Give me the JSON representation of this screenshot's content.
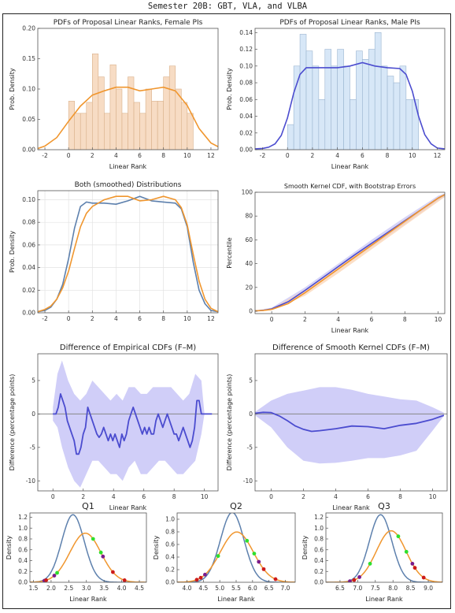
{
  "super_title": "Semester 20B: GBT, VLA, and VLBA",
  "colors": {
    "female": "#f0962e",
    "male": "#4b4ccf",
    "female_bar": "#f7dcc4",
    "male_bar": "#d7e7f7",
    "blue2": "#5d80ad",
    "band": "#b7b4f0",
    "zero": "#888888"
  },
  "chart_data": [
    {
      "id": "female_hist",
      "type": "bar",
      "title": "PDFs of Proposal Linear Ranks, Female PIs",
      "xlabel": "Linear Rank",
      "ylabel": "Prob. Density",
      "xlim": [
        -2.6,
        12.6
      ],
      "ylim": [
        0,
        0.2
      ],
      "xticks": [
        -2,
        0,
        2,
        4,
        6,
        8,
        10,
        12
      ],
      "yticks": [
        0,
        0.05,
        0.1,
        0.15,
        0.2
      ],
      "tick_decimals": 2,
      "bin_width": 0.5,
      "bin_start": 0,
      "values": [
        0.08,
        0.06,
        0.06,
        0.078,
        0.158,
        0.12,
        0.06,
        0.14,
        0.1,
        0.06,
        0.12,
        0.078,
        0.06,
        0.1,
        0.08,
        0.08,
        0.12,
        0.138,
        0.1,
        0.078,
        0.06
      ],
      "curve": {
        "x": [
          -2.6,
          -2,
          -1,
          0,
          1,
          2,
          3,
          4,
          5,
          6,
          7,
          8,
          9,
          10,
          11,
          12,
          12.6
        ],
        "y": [
          0.002,
          0.006,
          0.02,
          0.047,
          0.072,
          0.09,
          0.097,
          0.103,
          0.103,
          0.097,
          0.1,
          0.103,
          0.097,
          0.073,
          0.035,
          0.011,
          0.005
        ]
      }
    },
    {
      "id": "male_hist",
      "type": "bar",
      "title": "PDFs of Proposal Linear Ranks, Male PIs",
      "xlabel": "Linear Rank",
      "ylabel": "Prob. Density",
      "xlim": [
        -2.6,
        12.6
      ],
      "ylim": [
        0,
        0.145
      ],
      "xticks": [
        -2,
        0,
        2,
        4,
        6,
        8,
        10,
        12
      ],
      "yticks": [
        0,
        0.02,
        0.04,
        0.06,
        0.08,
        0.1,
        0.12,
        0.14
      ],
      "tick_decimals": 2,
      "bin_width": 0.5,
      "bin_start": 0,
      "values": [
        0.03,
        0.1,
        0.138,
        0.118,
        0.1,
        0.06,
        0.12,
        0.1,
        0.12,
        0.1,
        0.06,
        0.118,
        0.108,
        0.12,
        0.14,
        0.1,
        0.088,
        0.08,
        0.1,
        0.06,
        0.06
      ],
      "curve": {
        "x": [
          -2.6,
          -2,
          -1.5,
          -1,
          -0.5,
          0,
          0.5,
          1,
          1.5,
          2,
          3,
          4,
          5,
          6,
          7,
          8,
          9,
          9.5,
          10,
          10.5,
          11,
          11.5,
          12,
          12.6
        ],
        "y": [
          0.001,
          0.0015,
          0.003,
          0.007,
          0.017,
          0.038,
          0.068,
          0.09,
          0.098,
          0.098,
          0.098,
          0.098,
          0.1,
          0.104,
          0.1,
          0.098,
          0.097,
          0.09,
          0.07,
          0.04,
          0.018,
          0.007,
          0.002,
          0.001
        ]
      }
    },
    {
      "id": "both",
      "type": "line",
      "title": "Both (smoothed) Distributions",
      "xlabel": "",
      "ylabel": "Prob. Density",
      "xlim": [
        -2.6,
        12.6
      ],
      "ylim": [
        0,
        0.108
      ],
      "xticks": [
        -2,
        0,
        2,
        4,
        6,
        8,
        10,
        12
      ],
      "yticks": [
        0,
        0.02,
        0.04,
        0.06,
        0.08,
        0.1
      ],
      "tick_decimals": 2,
      "grid": true,
      "series": [
        {
          "x": [
            -2.6,
            -2,
            -1.5,
            -1,
            -0.5,
            0,
            0.5,
            1,
            1.5,
            2,
            3,
            4,
            5,
            6,
            7,
            8,
            9,
            9.5,
            10,
            10.5,
            11,
            11.5,
            12,
            12.6
          ],
          "y": [
            0.001,
            0.002,
            0.005,
            0.012,
            0.025,
            0.048,
            0.075,
            0.094,
            0.098,
            0.097,
            0.097,
            0.096,
            0.099,
            0.103,
            0.099,
            0.098,
            0.097,
            0.092,
            0.076,
            0.045,
            0.02,
            0.008,
            0.002,
            0.001
          ],
          "color": "blue2"
        },
        {
          "x": [
            -2.6,
            -2,
            -1.5,
            -1,
            -0.5,
            0,
            0.5,
            1,
            1.5,
            2,
            3,
            4,
            5,
            6,
            7,
            8,
            9,
            9.5,
            10,
            10.5,
            11,
            11.5,
            12,
            12.6
          ],
          "y": [
            0.001,
            0.003,
            0.006,
            0.012,
            0.022,
            0.037,
            0.057,
            0.076,
            0.088,
            0.094,
            0.1,
            0.103,
            0.103,
            0.099,
            0.1,
            0.103,
            0.1,
            0.093,
            0.078,
            0.052,
            0.028,
            0.012,
            0.004,
            0.001
          ],
          "color": "female"
        }
      ]
    },
    {
      "id": "cdf",
      "type": "line",
      "title": "Smooth Kernel CDF, with Bootstrap Errors",
      "xlabel": "Linear Rank",
      "ylabel": "Percentile",
      "xlim": [
        -1,
        10.4
      ],
      "ylim": [
        -2,
        100
      ],
      "xticks": [
        0,
        2,
        4,
        6,
        8,
        10
      ],
      "yticks": [
        0,
        20,
        40,
        60,
        80,
        100
      ],
      "tick_decimals": 0,
      "bands": [
        {
          "x": [
            -1,
            0,
            2,
            4,
            6,
            8,
            10,
            10.4
          ],
          "lo": [
            -0.5,
            1,
            16,
            35,
            54,
            73,
            93,
            96
          ],
          "hi": [
            0.5,
            3,
            20,
            40,
            60,
            79,
            97,
            99
          ],
          "color": "#c8c6f4"
        },
        {
          "x": [
            -1,
            0,
            2,
            4,
            6,
            8,
            10,
            10.4
          ],
          "lo": [
            -0.5,
            1,
            13,
            32,
            52,
            72,
            92,
            96
          ],
          "hi": [
            0.5,
            2,
            18,
            37,
            57,
            77,
            96,
            98.5
          ],
          "color": "#fbd4b4"
        }
      ],
      "series": [
        {
          "x": [
            -1,
            -0.5,
            0,
            1,
            2,
            3,
            4,
            5,
            6,
            7,
            8,
            9,
            10,
            10.4
          ],
          "y": [
            0.3,
            0.8,
            2,
            8,
            17.5,
            27.5,
            37.5,
            47.5,
            57,
            66.5,
            76,
            85.5,
            95,
            98
          ],
          "color": "male"
        },
        {
          "x": [
            -1,
            -0.5,
            0,
            1,
            2,
            3,
            4,
            5,
            6,
            7,
            8,
            9,
            10,
            10.4
          ],
          "y": [
            0.3,
            0.7,
            1.5,
            6.5,
            15.5,
            25.5,
            35.5,
            45.5,
            55.5,
            65.5,
            75.5,
            85.5,
            95,
            98
          ],
          "color": "female"
        }
      ]
    },
    {
      "id": "ediff",
      "type": "line",
      "title": "Difference of Empirical CDFs (F–M)",
      "xlabel": "Linear Rank",
      "ylabel": "Difference (percentage points)",
      "xlim": [
        -1,
        10.9
      ],
      "ylim": [
        -11.5,
        9
      ],
      "xticks": [
        0,
        2,
        4,
        6,
        8,
        10
      ],
      "yticks": [
        -10,
        -5,
        0,
        5
      ],
      "tick_decimals": 0,
      "zero_line": true,
      "bands": [
        {
          "x": [
            0,
            0.3,
            0.6,
            1,
            1.4,
            1.8,
            2.2,
            2.6,
            3,
            3.4,
            3.8,
            4.2,
            4.6,
            5,
            5.4,
            5.8,
            6.2,
            6.6,
            7,
            7.4,
            7.8,
            8.2,
            8.6,
            9,
            9.4,
            9.8,
            10
          ],
          "lo": [
            -1,
            -2,
            -5,
            -8,
            -10,
            -11,
            -9,
            -7,
            -7,
            -8,
            -9,
            -9,
            -10,
            -8,
            -7,
            -9,
            -9,
            -8,
            -7,
            -7,
            -8,
            -9,
            -9,
            -8,
            -7,
            -3,
            0
          ],
          "hi": [
            1,
            6,
            8,
            5,
            3,
            2,
            3,
            5,
            4,
            3,
            2,
            3,
            2,
            4,
            4,
            3,
            3,
            4,
            4,
            4,
            4,
            3,
            2,
            3,
            6,
            5,
            0
          ],
          "color": "#c0bef5"
        }
      ],
      "series": [
        {
          "x": [
            0,
            0.2,
            0.35,
            0.5,
            0.65,
            0.8,
            0.95,
            1.1,
            1.25,
            1.4,
            1.55,
            1.7,
            1.85,
            2.0,
            2.15,
            2.3,
            2.45,
            2.6,
            2.75,
            2.9,
            3.05,
            3.2,
            3.35,
            3.5,
            3.65,
            3.8,
            3.95,
            4.1,
            4.25,
            4.4,
            4.55,
            4.7,
            4.85,
            5.0,
            5.15,
            5.3,
            5.45,
            5.6,
            5.75,
            5.9,
            6.05,
            6.2,
            6.35,
            6.5,
            6.65,
            6.8,
            6.95,
            7.1,
            7.25,
            7.4,
            7.55,
            7.7,
            7.85,
            8.0,
            8.15,
            8.3,
            8.45,
            8.6,
            8.75,
            8.9,
            9.05,
            9.2,
            9.35,
            9.5,
            9.65,
            9.8,
            10,
            10.5
          ],
          "y": [
            0,
            0,
            1,
            3,
            2,
            1,
            -1,
            -2,
            -3,
            -4,
            -6,
            -6,
            -5,
            -3,
            -2,
            1,
            0,
            -1,
            -2,
            -3,
            -3.5,
            -3,
            -2,
            -3,
            -4,
            -3,
            -4,
            -3,
            -4,
            -5,
            -3,
            -4,
            -3,
            -1,
            0,
            1,
            0,
            -1,
            -2,
            -3,
            -2,
            -3,
            -2,
            -3,
            -3,
            -1,
            0,
            -1,
            -2,
            -1,
            0,
            -1,
            -2,
            -3,
            -3,
            -4,
            -3,
            -2,
            -3,
            -4,
            -5,
            -4,
            -2,
            2,
            2,
            0,
            0,
            0
          ],
          "color": "male"
        }
      ]
    },
    {
      "id": "sdiff",
      "type": "line",
      "title": "Difference of Smooth Kernel CDFs (F–M)",
      "xlabel": "Linear Rank",
      "ylabel": "Difference (percentage points)",
      "xlim": [
        -1,
        10.9
      ],
      "ylim": [
        -11.5,
        9
      ],
      "xticks": [
        0,
        2,
        4,
        6,
        8,
        10
      ],
      "yticks": [
        -10,
        -5,
        0,
        5
      ],
      "tick_decimals": 0,
      "zero_line": true,
      "bands": [
        {
          "x": [
            -1,
            0,
            1,
            2,
            3,
            4,
            5,
            6,
            7,
            8,
            9,
            10,
            10.7
          ],
          "lo": [
            -0.2,
            -2,
            -5,
            -7,
            -7.4,
            -7.3,
            -7,
            -6.6,
            -6.6,
            -6.2,
            -5.5,
            -2.5,
            -0.3
          ],
          "hi": [
            0.3,
            2,
            3,
            3.5,
            4,
            4,
            3.6,
            3,
            2.6,
            2.2,
            2,
            1,
            0.2
          ],
          "color": "#c0bef5"
        }
      ],
      "series": [
        {
          "x": [
            -1,
            -0.5,
            0,
            0.5,
            1,
            1.5,
            2,
            2.5,
            3,
            4,
            5,
            6,
            7,
            8,
            9,
            10,
            10.7
          ],
          "y": [
            0.1,
            0.25,
            0.2,
            -0.3,
            -1,
            -1.8,
            -2.3,
            -2.6,
            -2.5,
            -2.2,
            -1.8,
            -1.9,
            -2.2,
            -1.7,
            -1.4,
            -0.8,
            -0.2
          ],
          "color": "male"
        }
      ]
    },
    {
      "id": "q1",
      "type": "line",
      "title": "Q1",
      "xlabel": "Linear Rank",
      "ylabel": "Density",
      "xlim": [
        1.4,
        4.7
      ],
      "ylim": [
        0,
        1.28
      ],
      "xticks": [
        1.5,
        2.0,
        2.5,
        3.0,
        3.5,
        4.0,
        4.5
      ],
      "yticks": [
        0,
        0.2,
        0.4,
        0.6,
        0.8,
        1.0,
        1.2
      ],
      "tick_decimals": 1,
      "gaussians": [
        {
          "mu": 2.62,
          "sigma": 0.32,
          "color": "blue2"
        },
        {
          "mu": 2.97,
          "sigma": 0.44,
          "color": "female"
        }
      ],
      "dots": [
        {
          "x": 2.17,
          "c": "#2ee02e"
        },
        {
          "x": 3.19,
          "c": "#2ee02e"
        },
        {
          "x": 3.41,
          "c": "#2ee02e"
        },
        {
          "x": 2.09,
          "c": "#7a1c8c"
        },
        {
          "x": 1.81,
          "c": "#7a1c8c"
        },
        {
          "x": 1.86,
          "c": "#cc1a1a"
        },
        {
          "x": 3.47,
          "c": "#7a1c8c"
        },
        {
          "x": 3.75,
          "c": "#cc1a1a"
        },
        {
          "x": 4.08,
          "c": "#cc1a1a"
        }
      ]
    },
    {
      "id": "q2",
      "type": "line",
      "title": "Q2",
      "xlabel": "Linear Rank",
      "ylabel": "Density",
      "xlim": [
        3.7,
        7.3
      ],
      "ylim": [
        0,
        1.1
      ],
      "xticks": [
        4.0,
        4.5,
        5.0,
        5.5,
        6.0,
        6.5,
        7.0
      ],
      "yticks": [
        0,
        0.2,
        0.4,
        0.6,
        0.8,
        1.0
      ],
      "tick_decimals": 1,
      "gaussians": [
        {
          "mu": 5.38,
          "sigma": 0.36,
          "color": "blue2"
        },
        {
          "mu": 5.52,
          "sigma": 0.5,
          "color": "female"
        }
      ],
      "dots": [
        {
          "x": 4.95,
          "c": "#2ee02e"
        },
        {
          "x": 5.83,
          "c": "#2ee02e"
        },
        {
          "x": 6.05,
          "c": "#2ee02e"
        },
        {
          "x": 4.55,
          "c": "#7a1c8c"
        },
        {
          "x": 4.42,
          "c": "#cc1a1a"
        },
        {
          "x": 4.3,
          "c": "#cc1a1a"
        },
        {
          "x": 6.19,
          "c": "#7a1c8c"
        },
        {
          "x": 6.34,
          "c": "#cc1a1a"
        },
        {
          "x": 6.7,
          "c": "#cc1a1a"
        }
      ]
    },
    {
      "id": "q3",
      "type": "line",
      "title": "Q3",
      "xlabel": "Linear Rank",
      "ylabel": "Density",
      "xlim": [
        6.1,
        9.4
      ],
      "ylim": [
        0,
        1.28
      ],
      "xticks": [
        6.5,
        7.0,
        7.5,
        8.0,
        8.5,
        9.0
      ],
      "yticks": [
        0,
        0.2,
        0.4,
        0.6,
        0.8,
        1.0,
        1.2
      ],
      "tick_decimals": 1,
      "gaussians": [
        {
          "mu": 7.65,
          "sigma": 0.32,
          "color": "blue2"
        },
        {
          "mu": 7.95,
          "sigma": 0.42,
          "color": "female"
        }
      ],
      "dots": [
        {
          "x": 7.35,
          "c": "#2ee02e"
        },
        {
          "x": 8.15,
          "c": "#2ee02e"
        },
        {
          "x": 8.38,
          "c": "#2ee02e"
        },
        {
          "x": 7.05,
          "c": "#7a1c8c"
        },
        {
          "x": 6.9,
          "c": "#cc1a1a"
        },
        {
          "x": 6.78,
          "c": "#7a1c8c"
        },
        {
          "x": 8.55,
          "c": "#7a1c8c"
        },
        {
          "x": 8.62,
          "c": "#cc1a1a"
        },
        {
          "x": 8.87,
          "c": "#cc1a1a"
        }
      ]
    }
  ]
}
